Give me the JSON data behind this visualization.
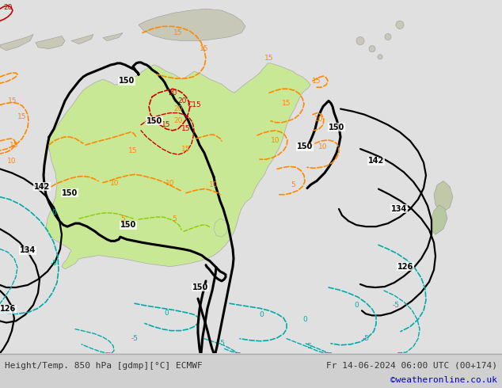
{
  "title_left": "Height/Temp. 850 hPa [gdmp][°C] ECMWF",
  "title_right": "Fr 14-06-2024 06:00 UTC (00+174)",
  "watermark": "©weatheronline.co.uk",
  "bg_color": "#e8e8e8",
  "bottom_bar_color": "#d0d0d0",
  "bottom_text_color": "#333333",
  "watermark_color": "#0000cc",
  "figsize": [
    6.34,
    4.9
  ],
  "dpi": 100,
  "land_green": "#c8e896",
  "land_gray": "#c8c8b8",
  "nz_green": "#a8d860",
  "contour_black": "#000000",
  "contour_orange": "#ff8800",
  "contour_red": "#cc0000",
  "contour_green": "#44aa00",
  "contour_cyan": "#00aaaa",
  "contour_gray": "#888888",
  "sea_color": "#e0e0e0"
}
